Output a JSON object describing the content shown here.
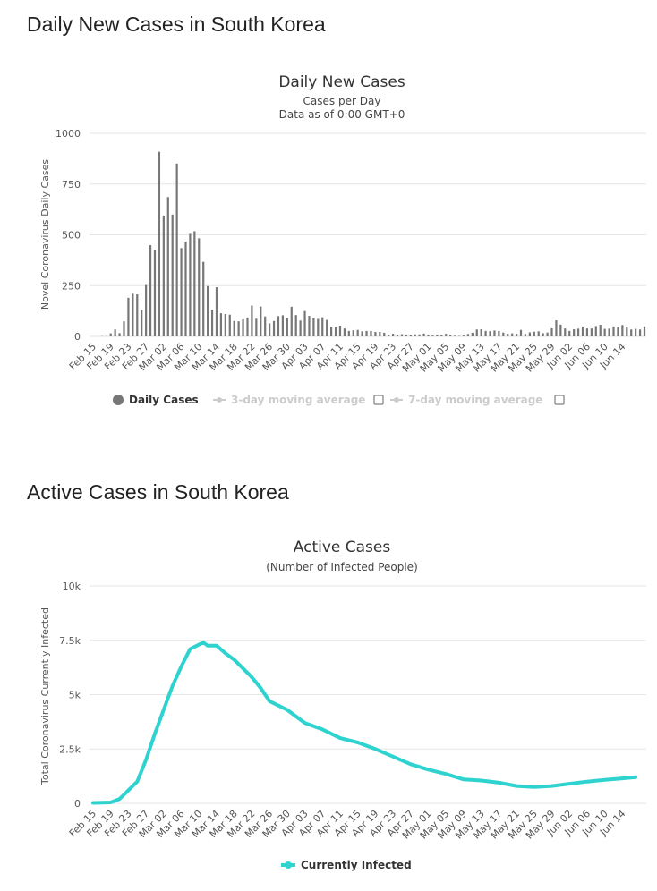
{
  "sections": {
    "daily_heading": "Daily New Cases in South Korea",
    "active_heading": "Active Cases in South Korea"
  },
  "chart_data": [
    {
      "type": "bar",
      "title": "Daily New Cases",
      "subtitle": "Cases per Day",
      "subtitle2": "Data as of 0:00 GMT+0",
      "ylabel": "Novel Coronavirus Daily Cases",
      "ylim": [
        0,
        1000
      ],
      "yticks": [
        "0",
        "250",
        "500",
        "750",
        "1000"
      ],
      "ytick_values": [
        0,
        250,
        500,
        750,
        1000
      ],
      "x_ticks": [
        "Feb 15",
        "Feb 19",
        "Feb 23",
        "Feb 27",
        "Mar 02",
        "Mar 06",
        "Mar 10",
        "Mar 14",
        "Mar 18",
        "Mar 22",
        "Mar 26",
        "Mar 30",
        "Apr 03",
        "Apr 07",
        "Apr 11",
        "Apr 15",
        "Apr 19",
        "Apr 23",
        "Apr 27",
        "May 01",
        "May 05",
        "May 09",
        "May 13",
        "May 17",
        "May 21",
        "May 25",
        "May 29",
        "Jun 02",
        "Jun 06",
        "Jun 10",
        "Jun 14"
      ],
      "bar_color": "#777777",
      "series": [
        {
          "name": "Daily Cases",
          "start": "Feb 15",
          "values": [
            0,
            0,
            1,
            1,
            15,
            34,
            16,
            74,
            190,
            210,
            207,
            130,
            253,
            449,
            427,
            909,
            595,
            686,
            600,
            851,
            435,
            467,
            505,
            518,
            483,
            367,
            248,
            131,
            242,
            114,
            110,
            107,
            76,
            74,
            84,
            93,
            152,
            87,
            147,
            98,
            64,
            76,
            100,
            104,
            91,
            146,
            105,
            78,
            125,
            101,
            89,
            86,
            94,
            81,
            47,
            47,
            53,
            39,
            27,
            30,
            32,
            25,
            27,
            27,
            22,
            22,
            18,
            8,
            13,
            9,
            11,
            8,
            6,
            10,
            10,
            14,
            9,
            4,
            9,
            6,
            13,
            8,
            3,
            2,
            4,
            12,
            18,
            34,
            35,
            27,
            26,
            29,
            27,
            19,
            13,
            15,
            13,
            32,
            12,
            20,
            23,
            25,
            16,
            19,
            40,
            79,
            58,
            39,
            27,
            35,
            38,
            49,
            39,
            39,
            51,
            57,
            37,
            38,
            49,
            45,
            56,
            48,
            34,
            37,
            34,
            49
          ]
        }
      ],
      "legend": [
        {
          "name": "Daily Cases",
          "enabled": true,
          "color": "#777777"
        },
        {
          "name": "3-day moving average",
          "enabled": false,
          "color": "#cccccc"
        },
        {
          "name": "7-day moving average",
          "enabled": false,
          "color": "#cccccc"
        }
      ]
    },
    {
      "type": "line",
      "title": "Active Cases",
      "subtitle": "(Number of Infected People)",
      "ylabel": "Total Coronavirus Currently Infected",
      "ylim": [
        0,
        10000
      ],
      "yticks": [
        "0",
        "2.5k",
        "5k",
        "7.5k",
        "10k"
      ],
      "ytick_values": [
        0,
        2500,
        5000,
        7500,
        10000
      ],
      "x_ticks": [
        "Feb 15",
        "Feb 19",
        "Feb 23",
        "Feb 27",
        "Mar 02",
        "Mar 06",
        "Mar 10",
        "Mar 14",
        "Mar 18",
        "Mar 22",
        "Mar 26",
        "Mar 30",
        "Apr 03",
        "Apr 07",
        "Apr 11",
        "Apr 15",
        "Apr 19",
        "Apr 23",
        "Apr 27",
        "May 01",
        "May 05",
        "May 09",
        "May 13",
        "May 17",
        "May 21",
        "May 25",
        "May 29",
        "Jun 02",
        "Jun 06",
        "Jun 10",
        "Jun 14"
      ],
      "line_color": "#2ed3d0",
      "series": [
        {
          "name": "Currently Infected",
          "points": [
            [
              "Feb 15",
              20
            ],
            [
              "Feb 19",
              40
            ],
            [
              "Feb 21",
              200
            ],
            [
              "Feb 23",
              600
            ],
            [
              "Feb 25",
              1000
            ],
            [
              "Feb 27",
              2000
            ],
            [
              "Feb 29",
              3200
            ],
            [
              "Mar 02",
              4300
            ],
            [
              "Mar 04",
              5400
            ],
            [
              "Mar 06",
              6300
            ],
            [
              "Mar 08",
              7100
            ],
            [
              "Mar 10",
              7300
            ],
            [
              "Mar 11",
              7400
            ],
            [
              "Mar 12",
              7250
            ],
            [
              "Mar 14",
              7250
            ],
            [
              "Mar 16",
              6900
            ],
            [
              "Mar 18",
              6600
            ],
            [
              "Mar 20",
              6200
            ],
            [
              "Mar 22",
              5800
            ],
            [
              "Mar 24",
              5300
            ],
            [
              "Mar 26",
              4700
            ],
            [
              "Mar 30",
              4300
            ],
            [
              "Apr 03",
              3700
            ],
            [
              "Apr 07",
              3400
            ],
            [
              "Apr 11",
              3000
            ],
            [
              "Apr 15",
              2800
            ],
            [
              "Apr 19",
              2500
            ],
            [
              "Apr 23",
              2150
            ],
            [
              "Apr 27",
              1800
            ],
            [
              "May 01",
              1550
            ],
            [
              "May 05",
              1350
            ],
            [
              "May 09",
              1100
            ],
            [
              "May 13",
              1050
            ],
            [
              "May 17",
              950
            ],
            [
              "May 21",
              800
            ],
            [
              "May 25",
              750
            ],
            [
              "May 29",
              800
            ],
            [
              "Jun 02",
              900
            ],
            [
              "Jun 06",
              1000
            ],
            [
              "Jun 10",
              1080
            ],
            [
              "Jun 14",
              1150
            ],
            [
              "Jun 17",
              1200
            ]
          ]
        }
      ],
      "legend": [
        {
          "name": "Currently Infected",
          "enabled": true,
          "color": "#2ed3d0"
        }
      ]
    }
  ]
}
